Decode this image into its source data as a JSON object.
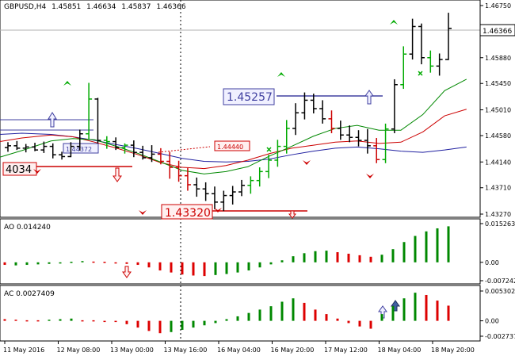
{
  "chart_data": {
    "type": "line",
    "symbol": "GBPUSD",
    "timeframe": "H4",
    "ohlc": {
      "open": "1.45851",
      "high": "1.46634",
      "low": "1.45837",
      "close": "1.46366"
    },
    "main_price_axis": {
      "ticks": [
        "1.46750",
        "1.45880",
        "1.45450",
        "1.45010",
        "1.44580",
        "1.44140",
        "1.43710",
        "1.43270"
      ],
      "current_price_label": "1.46366"
    },
    "time_axis": {
      "labels": [
        "11 May 2016",
        "12 May 08:00",
        "13 May 00:00",
        "13 May 16:00",
        "16 May 04:00",
        "16 May 20:00",
        "17 May 12:00",
        "18 May 04:00",
        "18 May 20:00"
      ]
    },
    "price_boxes": [
      {
        "text": "4034"
      },
      {
        "text": "1.44372"
      },
      {
        "text": "1.44440"
      },
      {
        "text": "1.45257"
      },
      {
        "text": "1.43320"
      }
    ],
    "candles": [
      {
        "o": 1.4438,
        "h": 1.4447,
        "l": 1.4431,
        "c": 1.4441,
        "color": "#000000"
      },
      {
        "o": 1.4441,
        "h": 1.4449,
        "l": 1.4434,
        "c": 1.4437,
        "color": "#000000"
      },
      {
        "o": 1.4437,
        "h": 1.4444,
        "l": 1.443,
        "c": 1.4439,
        "color": "#000000"
      },
      {
        "o": 1.4439,
        "h": 1.4446,
        "l": 1.4432,
        "c": 1.4434,
        "color": "#000000"
      },
      {
        "o": 1.4434,
        "h": 1.4448,
        "l": 1.4429,
        "c": 1.444,
        "color": "#000000"
      },
      {
        "o": 1.444,
        "h": 1.4445,
        "l": 1.442,
        "c": 1.4426,
        "color": "#000000"
      },
      {
        "o": 1.4426,
        "h": 1.4431,
        "l": 1.4418,
        "c": 1.4423,
        "color": "#000000"
      },
      {
        "o": 1.4423,
        "h": 1.4447,
        "l": 1.4422,
        "c": 1.444,
        "color": "#000000"
      },
      {
        "o": 1.444,
        "h": 1.4468,
        "l": 1.4433,
        "c": 1.4461,
        "color": "#000000"
      },
      {
        "o": 1.4461,
        "h": 1.4546,
        "l": 1.4452,
        "c": 1.4519,
        "color": "#00aa00"
      },
      {
        "o": 1.4519,
        "h": 1.4521,
        "l": 1.4445,
        "c": 1.445,
        "color": "#000000"
      },
      {
        "o": 1.445,
        "h": 1.4457,
        "l": 1.4436,
        "c": 1.4448,
        "color": "#00aa00"
      },
      {
        "o": 1.4448,
        "h": 1.4455,
        "l": 1.4434,
        "c": 1.4438,
        "color": "#000000"
      },
      {
        "o": 1.4438,
        "h": 1.4445,
        "l": 1.4428,
        "c": 1.4442,
        "color": "#00aa00"
      },
      {
        "o": 1.4442,
        "h": 1.445,
        "l": 1.4422,
        "c": 1.443,
        "color": "#000000"
      },
      {
        "o": 1.443,
        "h": 1.4441,
        "l": 1.4418,
        "c": 1.4421,
        "color": "#000000"
      },
      {
        "o": 1.4421,
        "h": 1.4442,
        "l": 1.4414,
        "c": 1.4427,
        "color": "#000000"
      },
      {
        "o": 1.4427,
        "h": 1.4437,
        "l": 1.441,
        "c": 1.4415,
        "color": "#cc0000"
      },
      {
        "o": 1.4415,
        "h": 1.4431,
        "l": 1.4386,
        "c": 1.4405,
        "color": "#cc0000"
      },
      {
        "o": 1.4405,
        "h": 1.4416,
        "l": 1.4381,
        "c": 1.4391,
        "color": "#cc0000"
      },
      {
        "o": 1.4391,
        "h": 1.4404,
        "l": 1.4366,
        "c": 1.4376,
        "color": "#cc0000"
      },
      {
        "o": 1.4376,
        "h": 1.4388,
        "l": 1.4356,
        "c": 1.4369,
        "color": "#000000"
      },
      {
        "o": 1.4369,
        "h": 1.438,
        "l": 1.4349,
        "c": 1.4361,
        "color": "#000000"
      },
      {
        "o": 1.4361,
        "h": 1.4373,
        "l": 1.4335,
        "c": 1.4347,
        "color": "#000000"
      },
      {
        "o": 1.4347,
        "h": 1.4366,
        "l": 1.4332,
        "c": 1.4358,
        "color": "#000000"
      },
      {
        "o": 1.4358,
        "h": 1.4374,
        "l": 1.4343,
        "c": 1.4364,
        "color": "#000000"
      },
      {
        "o": 1.4364,
        "h": 1.4384,
        "l": 1.4357,
        "c": 1.4375,
        "color": "#000000"
      },
      {
        "o": 1.4375,
        "h": 1.439,
        "l": 1.4361,
        "c": 1.4383,
        "color": "#00aa00"
      },
      {
        "o": 1.4383,
        "h": 1.4405,
        "l": 1.4373,
        "c": 1.4398,
        "color": "#00aa00"
      },
      {
        "o": 1.4398,
        "h": 1.4426,
        "l": 1.4387,
        "c": 1.4417,
        "color": "#00aa00"
      },
      {
        "o": 1.4417,
        "h": 1.4451,
        "l": 1.4406,
        "c": 1.444,
        "color": "#00aa00"
      },
      {
        "o": 1.444,
        "h": 1.4484,
        "l": 1.4428,
        "c": 1.447,
        "color": "#00aa00"
      },
      {
        "o": 1.447,
        "h": 1.4512,
        "l": 1.4459,
        "c": 1.4496,
        "color": "#000000"
      },
      {
        "o": 1.4496,
        "h": 1.453,
        "l": 1.4485,
        "c": 1.4517,
        "color": "#000000"
      },
      {
        "o": 1.4517,
        "h": 1.4528,
        "l": 1.4495,
        "c": 1.4503,
        "color": "#000000"
      },
      {
        "o": 1.4503,
        "h": 1.4517,
        "l": 1.4478,
        "c": 1.4486,
        "color": "#000000"
      },
      {
        "o": 1.4486,
        "h": 1.45,
        "l": 1.4462,
        "c": 1.447,
        "color": "#cc0000"
      },
      {
        "o": 1.447,
        "h": 1.4483,
        "l": 1.4451,
        "c": 1.4459,
        "color": "#000000"
      },
      {
        "o": 1.4459,
        "h": 1.4475,
        "l": 1.4447,
        "c": 1.4455,
        "color": "#000000"
      },
      {
        "o": 1.4455,
        "h": 1.4467,
        "l": 1.444,
        "c": 1.445,
        "color": "#000000"
      },
      {
        "o": 1.445,
        "h": 1.4469,
        "l": 1.4428,
        "c": 1.4441,
        "color": "#000000"
      },
      {
        "o": 1.4441,
        "h": 1.4454,
        "l": 1.4412,
        "c": 1.4418,
        "color": "#cc0000"
      },
      {
        "o": 1.4418,
        "h": 1.4478,
        "l": 1.4412,
        "c": 1.4469,
        "color": "#00aa00"
      },
      {
        "o": 1.4469,
        "h": 1.4552,
        "l": 1.4462,
        "c": 1.4543,
        "color": "#000000"
      },
      {
        "o": 1.4543,
        "h": 1.4607,
        "l": 1.4536,
        "c": 1.4594,
        "color": "#00aa00"
      },
      {
        "o": 1.4594,
        "h": 1.4653,
        "l": 1.4585,
        "c": 1.464,
        "color": "#000000"
      },
      {
        "o": 1.464,
        "h": 1.4645,
        "l": 1.4577,
        "c": 1.4588,
        "color": "#000000"
      },
      {
        "o": 1.4588,
        "h": 1.46,
        "l": 1.4563,
        "c": 1.4574,
        "color": "#00aa00"
      },
      {
        "o": 1.4574,
        "h": 1.4595,
        "l": 1.4558,
        "c": 1.4585,
        "color": "#000000"
      },
      {
        "o": 1.4585,
        "h": 1.4663,
        "l": 1.4584,
        "c": 1.4637,
        "color": "#000000"
      }
    ],
    "ma_green": [
      1.4422,
      1.4433,
      1.4449,
      1.4453,
      1.4451,
      1.444,
      1.4428,
      1.4414,
      1.44,
      1.4394,
      1.4398,
      1.4406,
      1.4424,
      1.444,
      1.4457,
      1.447,
      1.4475,
      1.4467,
      1.4467,
      1.4493,
      1.4533,
      1.4552
    ],
    "ma_red": [
      1.4448,
      1.4454,
      1.4459,
      1.4456,
      1.4447,
      1.4437,
      1.4426,
      1.4413,
      1.4405,
      1.4403,
      1.4408,
      1.4417,
      1.4428,
      1.4437,
      1.4442,
      1.4447,
      1.4449,
      1.4445,
      1.4447,
      1.4464,
      1.4491,
      1.4502
    ],
    "ma_blue": [
      1.446,
      1.4462,
      1.446,
      1.4456,
      1.445,
      1.4443,
      1.4436,
      1.4428,
      1.442,
      1.4415,
      1.4414,
      1.4415,
      1.4419,
      1.4426,
      1.4432,
      1.4437,
      1.4439,
      1.4436,
      1.4432,
      1.443,
      1.4434,
      1.4439
    ],
    "ma_index_times": [
      0,
      3,
      7,
      10,
      13,
      16,
      19,
      22,
      25,
      28,
      31,
      34,
      37,
      40,
      43,
      46,
      49,
      52,
      55,
      58,
      61,
      64
    ],
    "ao": {
      "label": "AO 0.014240",
      "ticks": [
        "0.015263",
        "0.00",
        "-0.007242"
      ],
      "values": [
        -0.001,
        -0.0012,
        -0.001,
        -0.0008,
        -0.0006,
        -0.0002,
        0.0002,
        0.0005,
        0.0003,
        0.0002,
        -0.0001,
        -0.0006,
        -0.001,
        -0.002,
        -0.0032,
        -0.004,
        -0.0048,
        -0.0052,
        -0.0054,
        -0.005,
        -0.0046,
        -0.004,
        -0.0032,
        -0.002,
        -0.0008,
        0.0008,
        0.0024,
        0.0036,
        0.0044,
        0.0046,
        0.004,
        0.0034,
        0.0028,
        0.0022,
        0.003,
        0.0052,
        0.008,
        0.0104,
        0.0122,
        0.0134,
        0.0142
      ],
      "colors": [
        "r",
        "g",
        "g",
        "g",
        "g",
        "g",
        "g",
        "g",
        "r",
        "r",
        "r",
        "r",
        "r",
        "r",
        "r",
        "r",
        "r",
        "r",
        "r",
        "g",
        "g",
        "g",
        "g",
        "g",
        "g",
        "g",
        "g",
        "g",
        "g",
        "g",
        "r",
        "r",
        "r",
        "r",
        "g",
        "g",
        "g",
        "g",
        "g",
        "g",
        "g"
      ]
    },
    "ac": {
      "label": "AC 0.0027409",
      "ticks": [
        "0.005302",
        "0.00",
        "-0.002737"
      ],
      "values": [
        0.0003,
        0.0002,
        0.0001,
        0.0001,
        0.0002,
        0.0003,
        0.0004,
        0.0001,
        0.0001,
        0.0,
        -0.0002,
        -0.0006,
        -0.0012,
        -0.0018,
        -0.0022,
        -0.002,
        -0.0016,
        -0.0012,
        -0.0008,
        -0.0004,
        0.0003,
        0.0008,
        0.0014,
        0.002,
        0.0026,
        0.0034,
        0.004,
        0.0032,
        0.002,
        0.0012,
        0.0004,
        -0.0004,
        -0.001,
        -0.0014,
        0.0012,
        0.0026,
        0.004,
        0.005,
        0.0046,
        0.0036,
        0.0027
      ],
      "colors": [
        "r",
        "r",
        "r",
        "r",
        "g",
        "g",
        "g",
        "r",
        "r",
        "r",
        "r",
        "r",
        "r",
        "r",
        "r",
        "g",
        "g",
        "g",
        "g",
        "g",
        "g",
        "g",
        "g",
        "g",
        "g",
        "g",
        "g",
        "r",
        "r",
        "r",
        "r",
        "r",
        "r",
        "r",
        "g",
        "g",
        "g",
        "g",
        "r",
        "r",
        "r"
      ]
    }
  }
}
